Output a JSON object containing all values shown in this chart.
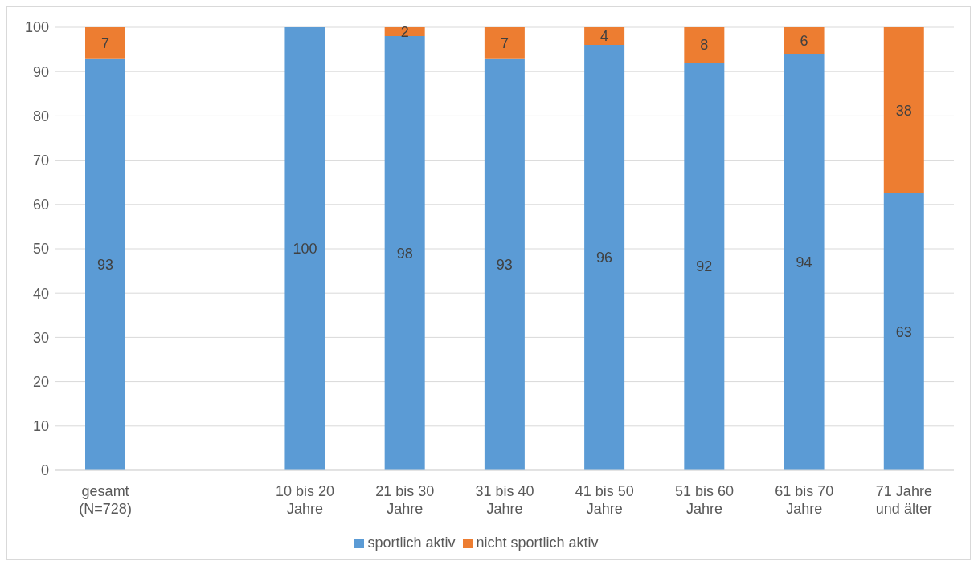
{
  "chart_data": {
    "type": "bar",
    "stacked": true,
    "categories": [
      "gesamt (N=728)",
      null,
      "10 bis 20 Jahre",
      "21 bis 30 Jahre",
      "31 bis 40 Jahre",
      "41 bis 50 Jahre",
      "51 bis 60 Jahre",
      "61 bis 70 Jahre",
      "71 Jahre und älter"
    ],
    "series": [
      {
        "name": "sportlich aktiv",
        "color": "#5b9bd5",
        "values": [
          93,
          null,
          100,
          98,
          93,
          96,
          92,
          94,
          62.5
        ],
        "value_labels": [
          "93",
          null,
          "100",
          "98",
          "93",
          "96",
          "92",
          "94",
          "63"
        ]
      },
      {
        "name": "nicht sportlich aktiv",
        "color": "#ed7d31",
        "values": [
          7,
          null,
          null,
          2,
          7,
          4,
          8,
          6,
          37.5
        ],
        "value_labels": [
          "7",
          null,
          null,
          "2",
          "7",
          "4",
          "8",
          "6",
          "38"
        ]
      }
    ],
    "ylim": [
      0,
      100
    ],
    "yticks": [
      0,
      10,
      20,
      30,
      40,
      50,
      60,
      70,
      80,
      90,
      100
    ],
    "grid": "y",
    "legend": "bottom"
  }
}
